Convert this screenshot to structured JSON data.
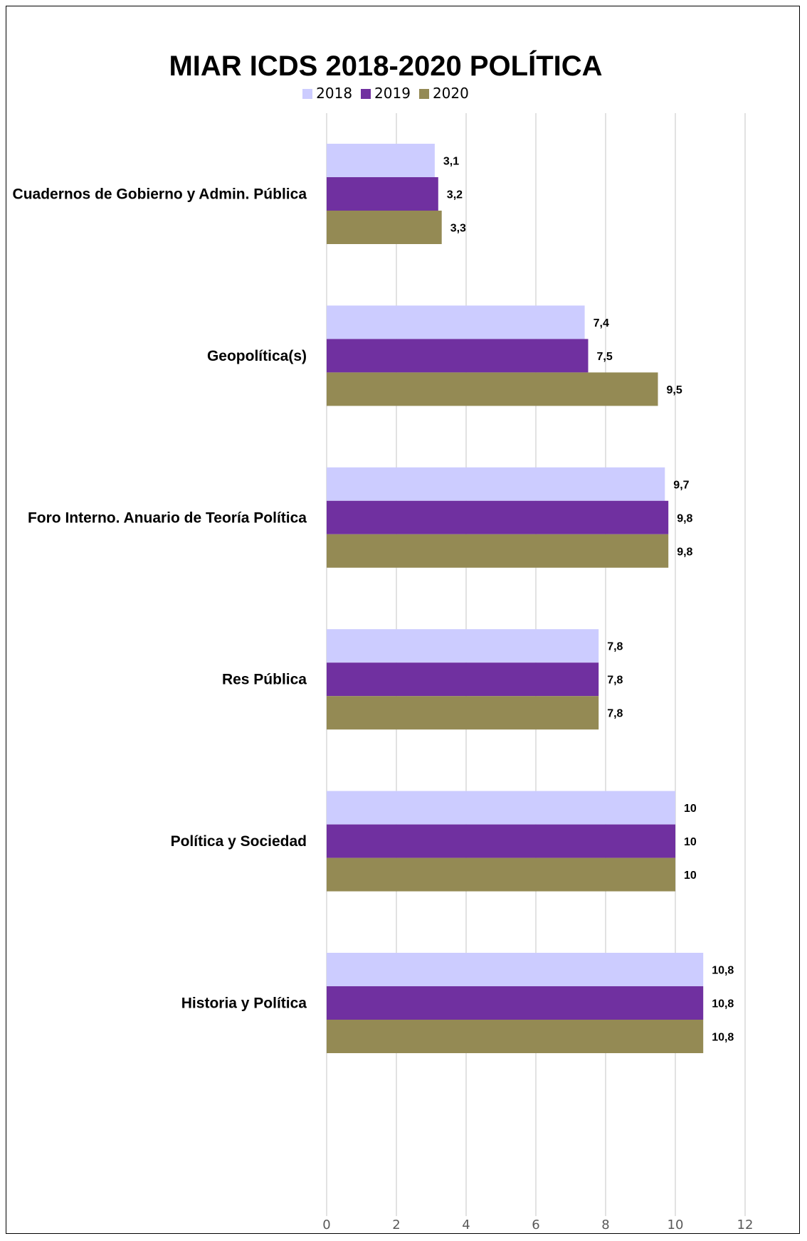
{
  "chart_data": {
    "type": "bar",
    "orientation": "horizontal",
    "title": "MIAR ICDS 2018-2020 POLÍTICA",
    "categories": [
      "Cuadernos de Gobierno y Admin. Pública",
      "Geopolítica(s)",
      "Foro Interno. Anuario de Teoría Política",
      "Res Pública",
      "Política y Sociedad",
      "Historia y Política"
    ],
    "series": [
      {
        "name": "2018",
        "color": "#ccccff",
        "values": [
          3.1,
          7.4,
          9.7,
          7.8,
          10,
          10.8
        ],
        "labels": [
          "3,1",
          "7,4",
          "9,7",
          "7,8",
          "10",
          "10,8"
        ]
      },
      {
        "name": "2019",
        "color": "#7030a0",
        "values": [
          3.2,
          7.5,
          9.8,
          7.8,
          10,
          10.8
        ],
        "labels": [
          "3,2",
          "7,5",
          "9,8",
          "7,8",
          "10",
          "10,8"
        ]
      },
      {
        "name": "2020",
        "color": "#948a54",
        "values": [
          3.3,
          9.5,
          9.8,
          7.8,
          10,
          10.8
        ],
        "labels": [
          "3,3",
          "9,5",
          "9,8",
          "7,8",
          "10",
          "10,8"
        ]
      }
    ],
    "xlim": [
      0,
      12
    ],
    "xticks": [
      "0",
      "2",
      "4",
      "6",
      "8",
      "10",
      "12"
    ],
    "grid": true,
    "legend_position": "top"
  }
}
